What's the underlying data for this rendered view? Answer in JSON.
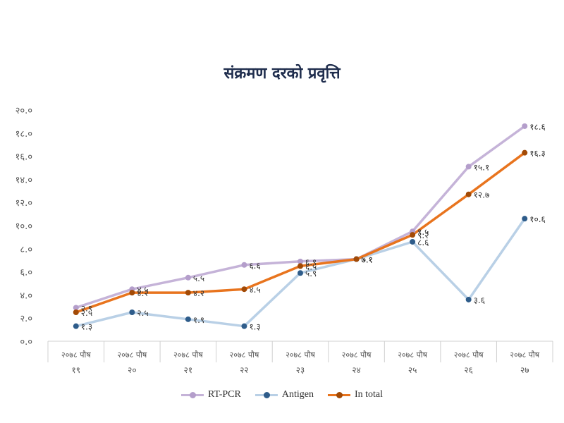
{
  "chart_data": {
    "type": "line",
    "title": "संक्रमण दरको प्रवृत्ति",
    "categories": [
      [
        "२०७८ पौष",
        "१९"
      ],
      [
        "२०७८ पौष",
        "२०"
      ],
      [
        "२०७८ पौष",
        "२१"
      ],
      [
        "२०७८ पौष",
        "२२"
      ],
      [
        "२०७८ पौष",
        "२३"
      ],
      [
        "२०७८ पौष",
        "२४"
      ],
      [
        "२०७८ पौष",
        "२५"
      ],
      [
        "२०७८ पौष",
        "२६"
      ],
      [
        "२०७८ पौष",
        "२७"
      ]
    ],
    "y_ticks": [
      "०.०",
      "२.०",
      "४.०",
      "६.०",
      "८.०",
      "१०.०",
      "१२.०",
      "१४.०",
      "१६.०",
      "१८.०",
      "२०.०"
    ],
    "ylim": [
      0,
      20
    ],
    "legend_position": "bottom",
    "series": [
      {
        "name": "RT-PCR",
        "color": "#c5b3d8",
        "marker_color": "#b49ecb",
        "values": [
          2.9,
          4.5,
          5.5,
          6.6,
          6.9,
          7.1,
          9.5,
          15.1,
          18.6
        ],
        "labels": [
          "२.९",
          "४.५",
          "५.५",
          "६.६",
          "६.९",
          "७.१",
          "९.५",
          "१५.१",
          "१८.६"
        ]
      },
      {
        "name": "Antigen",
        "color": "#b9d0e6",
        "marker_color": "#2e5c8a",
        "values": [
          1.3,
          2.5,
          1.9,
          1.3,
          5.9,
          7.1,
          8.6,
          3.6,
          10.6
        ],
        "labels": [
          "१.३",
          "२.५",
          "१.९",
          "१.३",
          "५.९",
          "७.१",
          "८.६",
          "३.६",
          "१०.६"
        ]
      },
      {
        "name": "In total",
        "color": "#e8741e",
        "marker_color": "#a24a06",
        "values": [
          2.5,
          4.2,
          4.2,
          4.5,
          6.5,
          7.1,
          9.2,
          12.7,
          16.3
        ],
        "labels": [
          "२.५",
          "४.२",
          "४.२",
          "४.५",
          "६.५",
          "७.१",
          "९.२",
          "१२.७",
          "१६.३"
        ]
      }
    ]
  }
}
